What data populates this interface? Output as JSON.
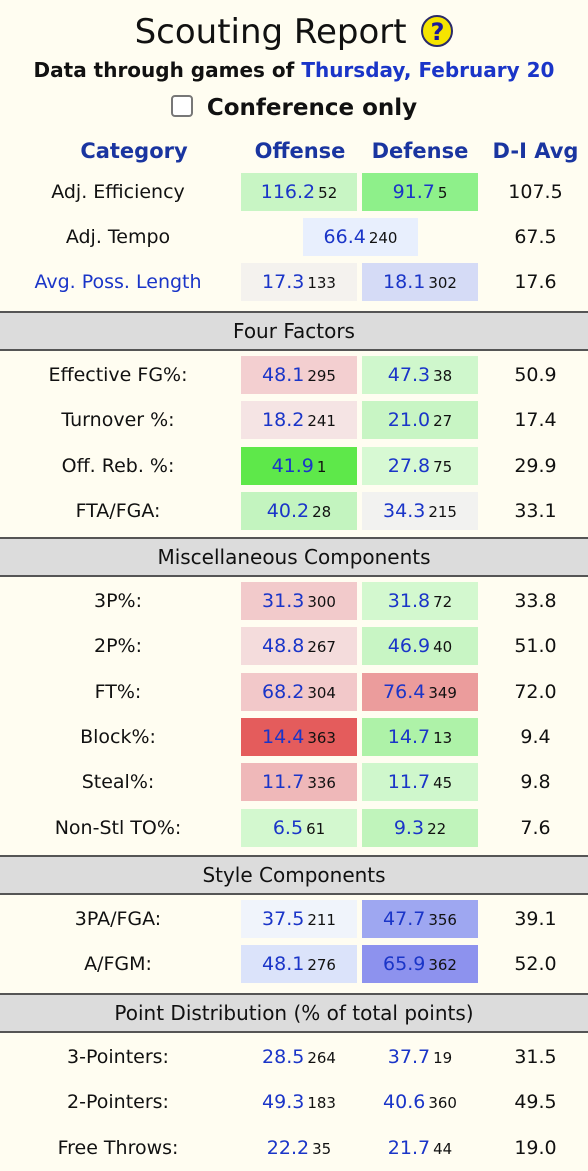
{
  "title": "Scouting Report",
  "help_icon": "?",
  "subtitle_prefix": "Data through games of",
  "subtitle_date": "Thursday, February 20",
  "conference_only_label": "Conference only",
  "conference_only_checked": false,
  "headers": {
    "category": "Category",
    "offense": "Offense",
    "defense": "Defense",
    "avg": "D-I Avg"
  },
  "top_rows": {
    "efficiency": {
      "label": "Adj. Efficiency",
      "off": "116.2",
      "off_rank": "52",
      "def": "91.7",
      "def_rank": "5",
      "avg": "107.5",
      "off_color": "#c8f5c4",
      "def_color": "#8ef08a"
    },
    "tempo": {
      "label": "Adj. Tempo",
      "val": "66.4",
      "rank": "240",
      "avg": "67.5",
      "color": "#e8effd"
    },
    "poss": {
      "label": "Avg. Poss. Length",
      "off": "17.3",
      "off_rank": "133",
      "def": "18.1",
      "def_rank": "302",
      "avg": "17.6",
      "off_color": "#f4f2ee",
      "def_color": "#d5dbf6"
    }
  },
  "four_factors": {
    "title": "Four Factors",
    "rows": [
      {
        "label": "Effective FG%:",
        "off": "48.1",
        "off_rank": "295",
        "def": "47.3",
        "def_rank": "38",
        "avg": "50.9",
        "off_color": "#f3cfd0",
        "def_color": "#cff7cc"
      },
      {
        "label": "Turnover %:",
        "off": "18.2",
        "off_rank": "241",
        "def": "21.0",
        "def_rank": "27",
        "avg": "17.4",
        "off_color": "#f5e4e4",
        "def_color": "#c8f5c4"
      },
      {
        "label": "Off. Reb. %:",
        "off": "41.9",
        "off_rank": "1",
        "def": "27.8",
        "def_rank": "75",
        "avg": "29.9",
        "off_color": "#5ee84a",
        "def_color": "#d7f9d3"
      },
      {
        "label": "FTA/FGA:",
        "off": "40.2",
        "off_rank": "28",
        "def": "34.3",
        "def_rank": "215",
        "avg": "33.1",
        "off_color": "#c3f4bf",
        "def_color": "#f2f2f0"
      }
    ]
  },
  "misc": {
    "title": "Miscellaneous Components",
    "rows": [
      {
        "label": "3P%:",
        "off": "31.3",
        "off_rank": "300",
        "def": "31.8",
        "def_rank": "72",
        "avg": "33.8",
        "off_color": "#f2cacb",
        "def_color": "#d3f8cf"
      },
      {
        "label": "2P%:",
        "off": "48.8",
        "off_rank": "267",
        "def": "46.9",
        "def_rank": "40",
        "avg": "51.0",
        "off_color": "#f4dcdc",
        "def_color": "#c8f5c4"
      },
      {
        "label": "FT%:",
        "off": "68.2",
        "off_rank": "304",
        "def": "76.4",
        "def_rank": "349",
        "avg": "72.0",
        "off_color": "#f2c8c9",
        "def_color": "#eb9c9c"
      },
      {
        "label": "Block%:",
        "off": "14.4",
        "off_rank": "363",
        "def": "14.7",
        "def_rank": "13",
        "avg": "9.4",
        "off_color": "#e45c5c",
        "def_color": "#aef2a8"
      },
      {
        "label": "Steal%:",
        "off": "11.7",
        "off_rank": "336",
        "def": "11.7",
        "def_rank": "45",
        "avg": "9.8",
        "off_color": "#efb8b9",
        "def_color": "#cff7cc"
      },
      {
        "label": "Non-Stl TO%:",
        "off": "6.5",
        "off_rank": "61",
        "def": "9.3",
        "def_rank": "22",
        "avg": "7.6",
        "off_color": "#d3f8cf",
        "def_color": "#c0f4bb"
      }
    ]
  },
  "style": {
    "title": "Style Components",
    "rows": [
      {
        "label": "3PA/FGA:",
        "off": "37.5",
        "off_rank": "211",
        "def": "47.7",
        "def_rank": "356",
        "avg": "39.1",
        "off_color": "#f0f4fb",
        "def_color": "#9ea7f1"
      },
      {
        "label": "A/FGM:",
        "off": "48.1",
        "off_rank": "276",
        "def": "65.9",
        "def_rank": "362",
        "avg": "52.0",
        "off_color": "#dbe3fa",
        "def_color": "#8d92ee"
      }
    ]
  },
  "points": {
    "title": "Point Distribution (% of total points)",
    "rows": [
      {
        "label": "3-Pointers:",
        "off": "28.5",
        "off_rank": "264",
        "def": "37.7",
        "def_rank": "19",
        "avg": "31.5"
      },
      {
        "label": "2-Pointers:",
        "off": "49.3",
        "off_rank": "183",
        "def": "40.6",
        "def_rank": "360",
        "avg": "49.5"
      },
      {
        "label": "Free Throws:",
        "off": "22.2",
        "off_rank": "35",
        "def": "21.7",
        "def_rank": "44",
        "avg": "19.0"
      }
    ]
  }
}
